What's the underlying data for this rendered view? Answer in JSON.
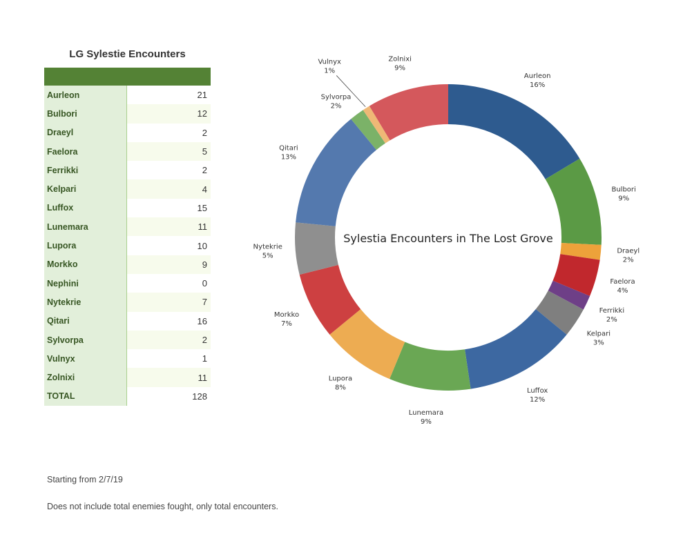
{
  "table": {
    "title": "LG Sylestie Encounters",
    "rows": [
      {
        "name": "Aurleon",
        "value": "21"
      },
      {
        "name": "Bulbori",
        "value": "12"
      },
      {
        "name": "Draeyl",
        "value": "2"
      },
      {
        "name": "Faelora",
        "value": "5"
      },
      {
        "name": "Ferrikki",
        "value": "2"
      },
      {
        "name": "Kelpari",
        "value": "4"
      },
      {
        "name": "Luffox",
        "value": "15"
      },
      {
        "name": "Lunemara",
        "value": "11"
      },
      {
        "name": "Lupora",
        "value": "10"
      },
      {
        "name": "Morkko",
        "value": "9"
      },
      {
        "name": "Nephini",
        "value": "0"
      },
      {
        "name": "Nytekrie",
        "value": "7"
      },
      {
        "name": "Qitari",
        "value": "16"
      },
      {
        "name": "Sylvorpa",
        "value": "2"
      },
      {
        "name": "Vulnyx",
        "value": "1"
      },
      {
        "name": "Zolnixi",
        "value": "11"
      },
      {
        "name": "TOTAL",
        "value": "128"
      }
    ]
  },
  "notes": {
    "start": "Starting from 2/7/19",
    "description": "Does not include total enemies fought, only total encounters."
  },
  "colors": {
    "header_green": "#548235",
    "name_cell": "#e2efda",
    "alt_row": "#f7fbec"
  },
  "chart_data": {
    "type": "pie",
    "variant": "donut",
    "title": "Sylestia Encounters in The Lost Grove",
    "slices": [
      {
        "label": "Aurleon",
        "value": 21,
        "percent": "16%",
        "color": "#2e5b8f"
      },
      {
        "label": "Bulbori",
        "value": 12,
        "percent": "9%",
        "color": "#5b9a45"
      },
      {
        "label": "Draeyl",
        "value": 2,
        "percent": "2%",
        "color": "#eda23a"
      },
      {
        "label": "Faelora",
        "value": 5,
        "percent": "4%",
        "color": "#c1282d"
      },
      {
        "label": "Ferrikki",
        "value": 2,
        "percent": "2%",
        "color": "#6e3f87"
      },
      {
        "label": "Kelpari",
        "value": 4,
        "percent": "3%",
        "color": "#7f7f7f"
      },
      {
        "label": "Luffox",
        "value": 15,
        "percent": "12%",
        "color": "#3d68a1"
      },
      {
        "label": "Lunemara",
        "value": 11,
        "percent": "9%",
        "color": "#6aa754"
      },
      {
        "label": "Lupora",
        "value": 10,
        "percent": "8%",
        "color": "#edac52"
      },
      {
        "label": "Morkko",
        "value": 9,
        "percent": "7%",
        "color": "#cd4041"
      },
      {
        "label": "Nytekrie",
        "value": 7,
        "percent": "5%",
        "color": "#8f8f8f"
      },
      {
        "label": "Qitari",
        "value": 16,
        "percent": "13%",
        "color": "#5479ae"
      },
      {
        "label": "Sylvorpa",
        "value": 2,
        "percent": "2%",
        "color": "#7bb268"
      },
      {
        "label": "Vulnyx",
        "value": 1,
        "percent": "1%",
        "color": "#efb876"
      },
      {
        "label": "Zolnixi",
        "value": 11,
        "percent": "9%",
        "color": "#d4585c"
      }
    ]
  }
}
